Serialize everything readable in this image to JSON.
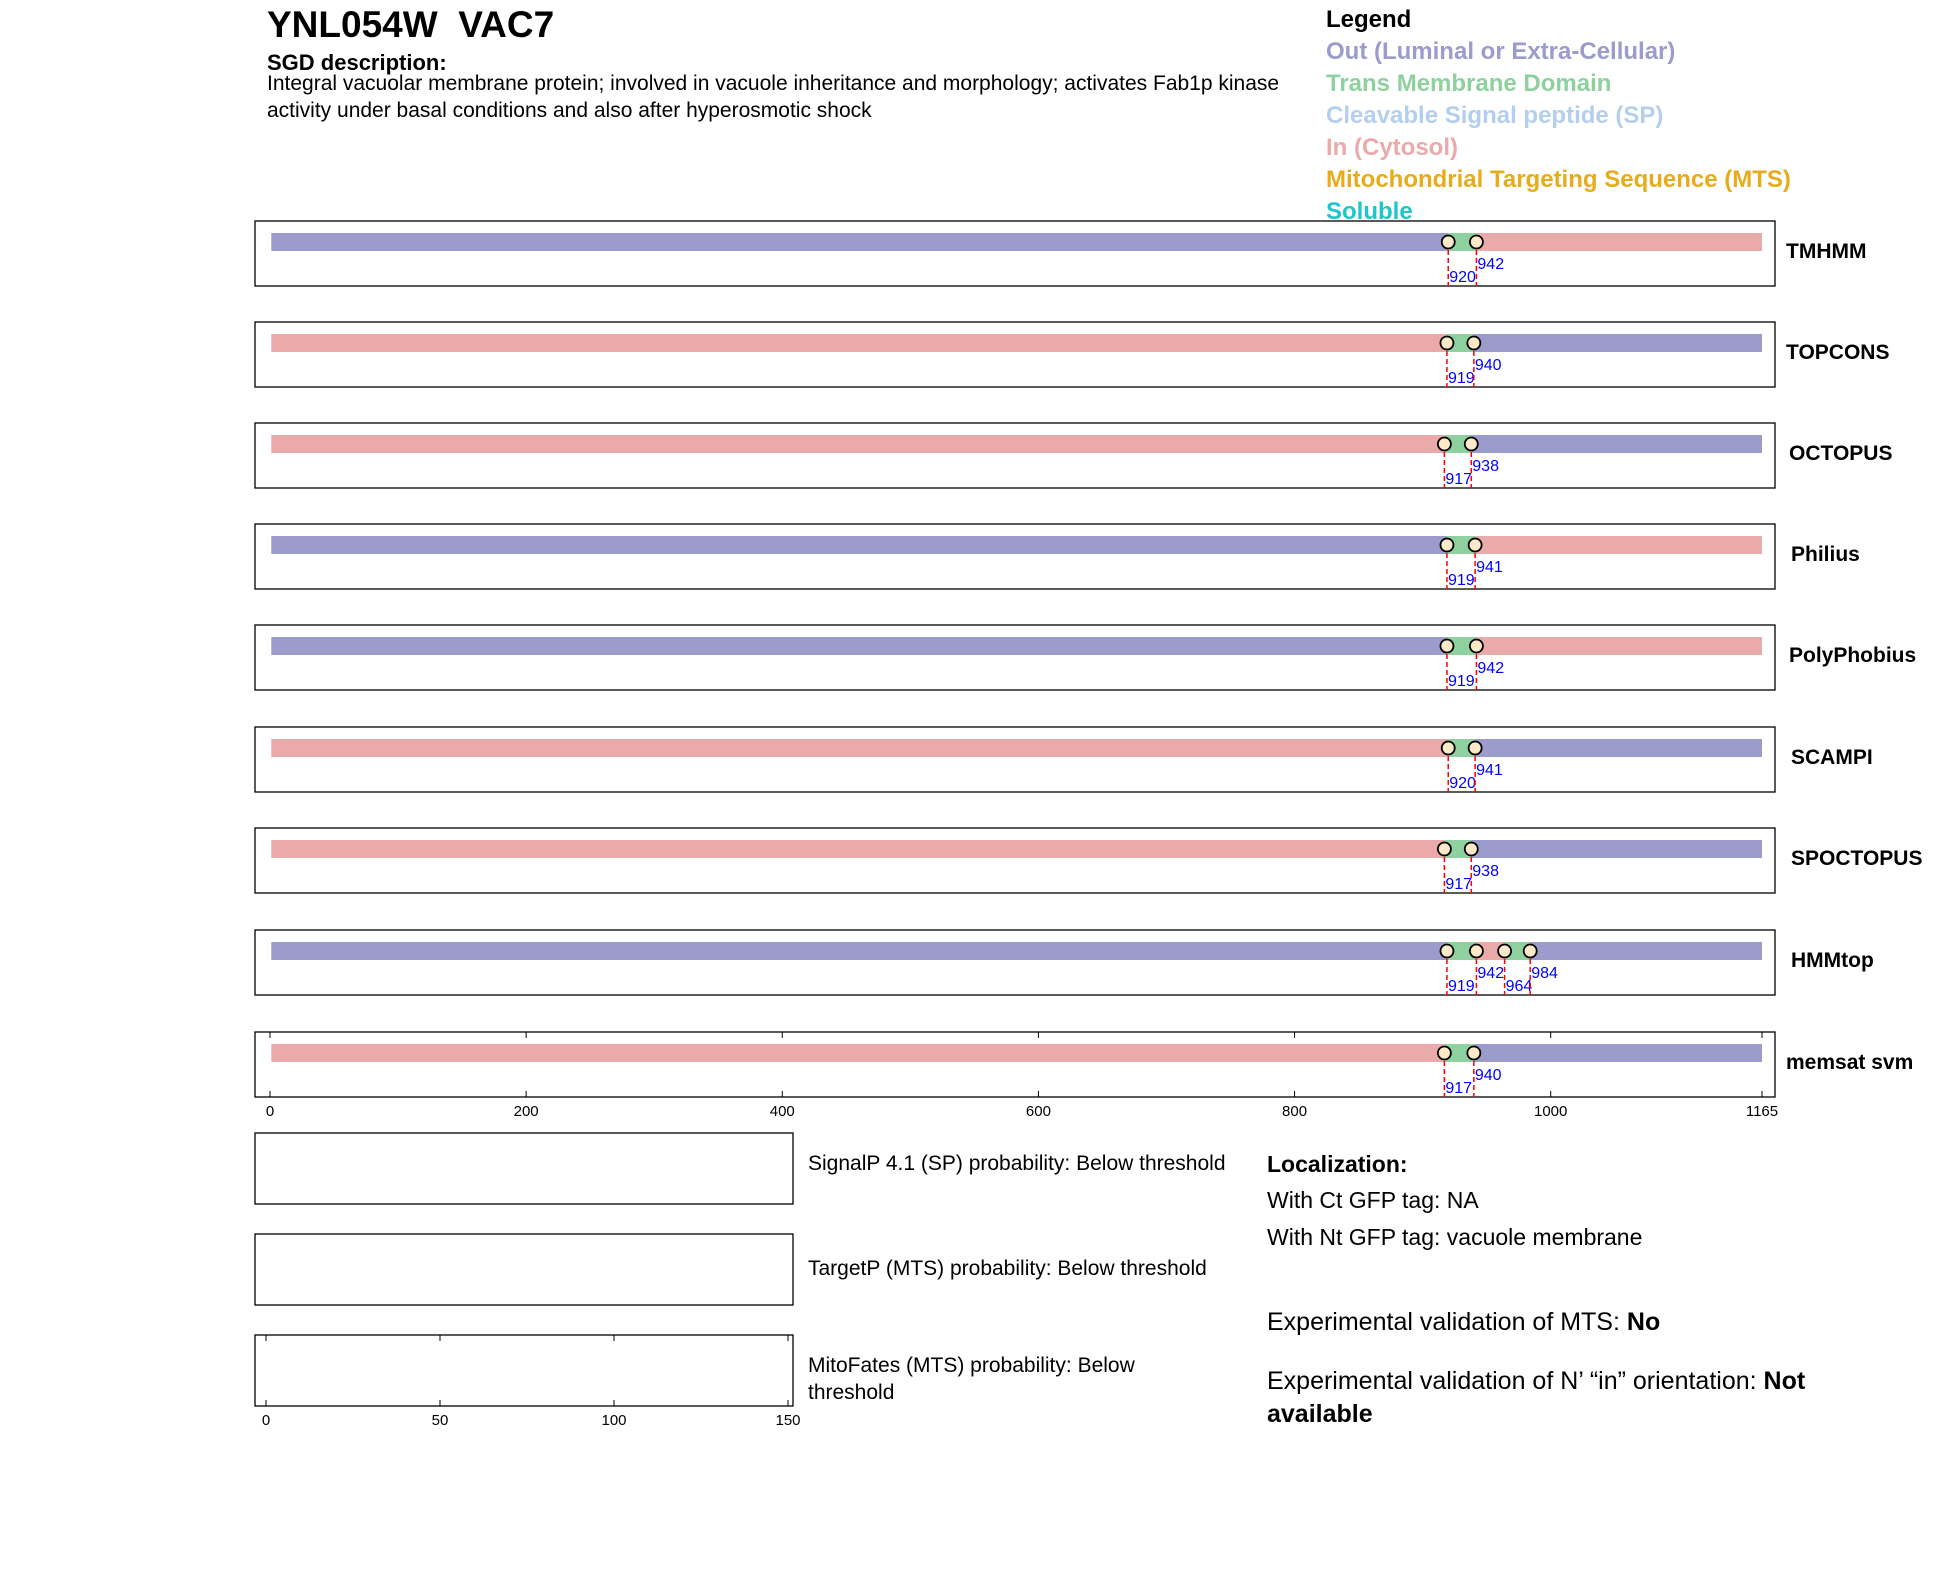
{
  "header": {
    "gene_id": "YNL054W",
    "gene_name": "VAC7",
    "sgd_label": "SGD description:",
    "sgd_description": "Integral vacuolar membrane protein; involved in vacuole inheritance and morphology; activates Fab1p kinase activity under basal conditions and also after hyperosmotic shock"
  },
  "legend": {
    "title": "Legend",
    "items": [
      {
        "label": "Out (Luminal or Extra-Cellular)",
        "color": "#9b9bcc"
      },
      {
        "label": "Trans Membrane Domain",
        "color": "#8fd09f"
      },
      {
        "label": "Cleavable Signal peptide (SP)",
        "color": "#b4cfee"
      },
      {
        "label": "In (Cytosol)",
        "color": "#ebaaaa"
      },
      {
        "label": "Mitochondrial Targeting Sequence (MTS)",
        "color": "#e6ac1c"
      },
      {
        "label": "Soluble",
        "color": "#1ec6c6"
      }
    ]
  },
  "chart_data": {
    "type": "topology-tracks",
    "protein_length": 1165,
    "x_ticks": [
      0,
      200,
      400,
      600,
      800,
      1000,
      1165
    ],
    "colors": {
      "out": "#9b9bcc",
      "tm": "#8fd09f",
      "in": "#ebaaaa",
      "marker_line": "#ff0000",
      "marker_text": "#0000ff"
    },
    "tracks": [
      {
        "name": "TMHMM",
        "segments": [
          {
            "start": 1,
            "end": 920,
            "type": "out"
          },
          {
            "start": 920,
            "end": 942,
            "type": "tm"
          },
          {
            "start": 942,
            "end": 1165,
            "type": "in"
          }
        ],
        "markers": [
          920,
          942
        ]
      },
      {
        "name": "TOPCONS",
        "segments": [
          {
            "start": 1,
            "end": 919,
            "type": "in"
          },
          {
            "start": 919,
            "end": 940,
            "type": "tm"
          },
          {
            "start": 940,
            "end": 1165,
            "type": "out"
          }
        ],
        "markers": [
          919,
          940
        ]
      },
      {
        "name": "OCTOPUS",
        "segments": [
          {
            "start": 1,
            "end": 917,
            "type": "in"
          },
          {
            "start": 917,
            "end": 938,
            "type": "tm"
          },
          {
            "start": 938,
            "end": 1165,
            "type": "out"
          }
        ],
        "markers": [
          917,
          938
        ]
      },
      {
        "name": "Philius",
        "segments": [
          {
            "start": 1,
            "end": 919,
            "type": "out"
          },
          {
            "start": 919,
            "end": 941,
            "type": "tm"
          },
          {
            "start": 941,
            "end": 1165,
            "type": "in"
          }
        ],
        "markers": [
          919,
          941
        ]
      },
      {
        "name": "PolyPhobius",
        "segments": [
          {
            "start": 1,
            "end": 919,
            "type": "out"
          },
          {
            "start": 919,
            "end": 942,
            "type": "tm"
          },
          {
            "start": 942,
            "end": 1165,
            "type": "in"
          }
        ],
        "markers": [
          919,
          942
        ]
      },
      {
        "name": "SCAMPI",
        "segments": [
          {
            "start": 1,
            "end": 920,
            "type": "in"
          },
          {
            "start": 920,
            "end": 941,
            "type": "tm"
          },
          {
            "start": 941,
            "end": 1165,
            "type": "out"
          }
        ],
        "markers": [
          920,
          941
        ]
      },
      {
        "name": "SPOCTOPUS",
        "segments": [
          {
            "start": 1,
            "end": 917,
            "type": "in"
          },
          {
            "start": 917,
            "end": 938,
            "type": "tm"
          },
          {
            "start": 938,
            "end": 1165,
            "type": "out"
          }
        ],
        "markers": [
          917,
          938
        ]
      },
      {
        "name": "HMMtop",
        "segments": [
          {
            "start": 1,
            "end": 919,
            "type": "out"
          },
          {
            "start": 919,
            "end": 942,
            "type": "tm"
          },
          {
            "start": 942,
            "end": 964,
            "type": "in"
          },
          {
            "start": 964,
            "end": 984,
            "type": "tm"
          },
          {
            "start": 984,
            "end": 1165,
            "type": "out"
          }
        ],
        "markers": [
          919,
          942,
          964,
          984
        ]
      },
      {
        "name": "memsat svm",
        "segments": [
          {
            "start": 1,
            "end": 917,
            "type": "in"
          },
          {
            "start": 917,
            "end": 940,
            "type": "tm"
          },
          {
            "start": 940,
            "end": 1165,
            "type": "out"
          }
        ],
        "markers": [
          917,
          940
        ]
      }
    ],
    "probability_axis": {
      "range": [
        0,
        150
      ],
      "ticks": [
        0,
        50,
        100,
        150
      ]
    }
  },
  "probabilities": {
    "signalp": "SignalP 4.1 (SP) probability: Below threshold",
    "targetp": "TargetP (MTS) probability: Below threshold",
    "mitofates": "MitoFates (MTS) probability: Below threshold"
  },
  "localization": {
    "title": "Localization:",
    "ct_gfp": "With Ct GFP tag: NA",
    "nt_gfp": "With Nt GFP tag: vacuole membrane"
  },
  "validation": {
    "mts_label": "Experimental validation of MTS: ",
    "mts_value": "No",
    "orientation_label": "Experimental validation of N’ “in” orientation: ",
    "orientation_value": "Not available"
  }
}
